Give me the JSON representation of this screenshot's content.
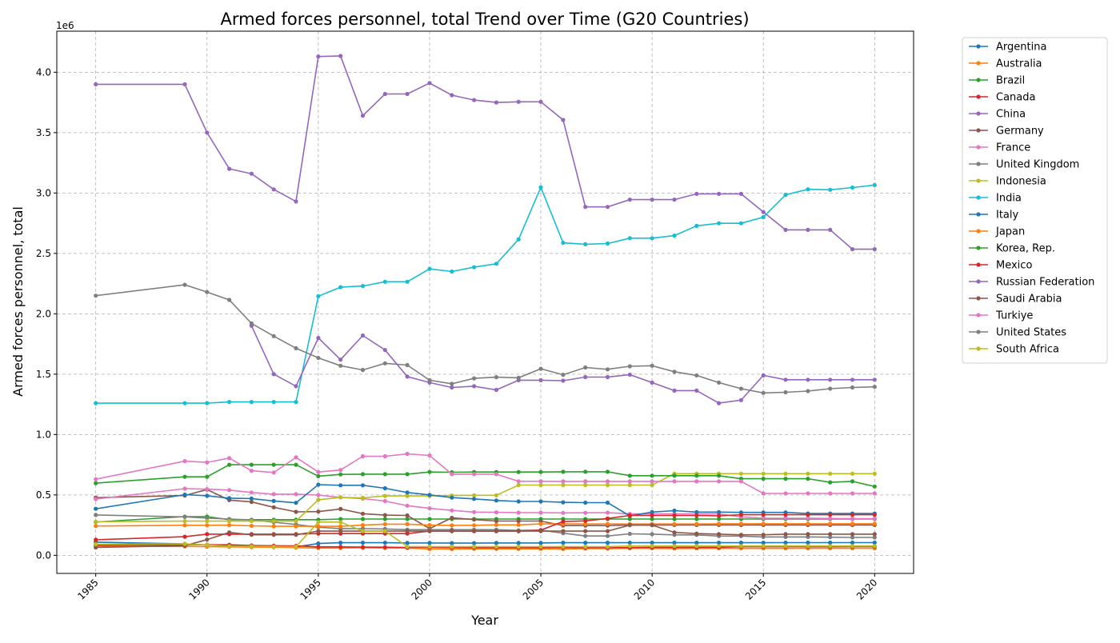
{
  "chart_data": {
    "type": "line",
    "title": "Armed forces personnel, total Trend over Time (G20 Countries)",
    "xlabel": "Year",
    "ylabel": "Armed forces personnel, total",
    "y_offset_label": "1e6",
    "y_scale": 1000000,
    "xlim": [
      1983.25,
      2021.75
    ],
    "ylim": [
      -150000,
      4340000
    ],
    "x_ticks": [
      1985,
      1990,
      1995,
      2000,
      2005,
      2010,
      2015,
      2020
    ],
    "y_ticks": [
      0,
      500000,
      1000000,
      1500000,
      2000000,
      2500000,
      3000000,
      3500000,
      4000000
    ],
    "y_tick_labels": [
      "0.0",
      "0.5",
      "1.0",
      "1.5",
      "2.0",
      "2.5",
      "3.0",
      "3.5",
      "4.0"
    ],
    "grid": true,
    "legend_position": "outside-right",
    "x": [
      1985,
      1989,
      1990,
      1991,
      1992,
      1993,
      1994,
      1995,
      1996,
      1997,
      1998,
      1999,
      2000,
      2001,
      2002,
      2003,
      2004,
      2005,
      2006,
      2007,
      2008,
      2009,
      2010,
      2011,
      2012,
      2013,
      2014,
      2015,
      2016,
      2017,
      2018,
      2019,
      2020
    ],
    "series": [
      {
        "name": "Argentina",
        "color": "#1f77b4",
        "values": [
          109000,
          95000,
          85000,
          82000,
          72000,
          70000,
          70000,
          98000,
          104000,
          104000,
          104000,
          102000,
          102000,
          101000,
          101000,
          102000,
          102000,
          102000,
          104000,
          104000,
          104000,
          104000,
          104000,
          104000,
          104000,
          104000,
          104000,
          104000,
          105000,
          105000,
          105000,
          105000,
          105000
        ]
      },
      {
        "name": "Australia",
        "color": "#ff7f0e",
        "values": [
          76000,
          73000,
          72000,
          70000,
          68000,
          67000,
          64000,
          60000,
          60000,
          62000,
          60000,
          60000,
          52000,
          51000,
          53000,
          53000,
          53000,
          53000,
          52000,
          55000,
          55000,
          57000,
          57000,
          56000,
          57000,
          57000,
          57000,
          57000,
          57000,
          58000,
          58000,
          58000,
          58000
        ]
      },
      {
        "name": "Brazil",
        "color": "#2ca02c",
        "values": [
          276000,
          320000,
          320000,
          295000,
          295000,
          295000,
          295000,
          295000,
          300000,
          300000,
          300000,
          300000,
          300000,
          300000,
          300000,
          300000,
          300000,
          300000,
          300000,
          300000,
          300000,
          300000,
          300000,
          300000,
          300000,
          300000,
          300000,
          300000,
          300000,
          300000,
          300000,
          300000,
          300000
        ]
      },
      {
        "name": "Canada",
        "color": "#d62728",
        "values": [
          83000,
          88000,
          87000,
          87000,
          82000,
          79000,
          78000,
          70000,
          70000,
          68000,
          67000,
          65000,
          65000,
          64000,
          64000,
          64000,
          64000,
          64000,
          64000,
          64000,
          64000,
          64000,
          66000,
          66000,
          66000,
          66000,
          71000,
          71000,
          71000,
          71000,
          71000,
          72000,
          72000
        ]
      },
      {
        "name": "China",
        "color": "#9467bd",
        "values": [
          3900000,
          3900000,
          3500000,
          3200000,
          3160000,
          3030000,
          2930000,
          4130000,
          4135000,
          3640000,
          3820000,
          3820000,
          3910000,
          3810000,
          3770000,
          3750000,
          3755000,
          3755000,
          3605000,
          2885000,
          2885000,
          2945000,
          2945000,
          2945000,
          2993000,
          2993000,
          2993000,
          2843000,
          2695000,
          2695000,
          2695000,
          2535000,
          2535000
        ]
      },
      {
        "name": "Germany",
        "color": "#8c564b",
        "values": [
          478000,
          495000,
          545000,
          457000,
          442000,
          398000,
          360000,
          362000,
          384000,
          345000,
          333000,
          330000,
          221000,
          310000,
          296000,
          284000,
          284000,
          284000,
          246000,
          246000,
          246000,
          251000,
          251000,
          251000,
          251000,
          251000,
          251000,
          251000,
          251000,
          251000,
          251000,
          251000,
          251000
        ]
      },
      {
        "name": "France",
        "color": "#e377c2",
        "values": [
          465000,
          552000,
          548000,
          540000,
          520000,
          506000,
          506000,
          499000,
          480000,
          470000,
          449000,
          411000,
          389000,
          372000,
          358000,
          356000,
          353000,
          353000,
          351000,
          352000,
          353000,
          343000,
          343000,
          343000,
          343000,
          343000,
          318000,
          307000,
          307000,
          307000,
          305000,
          303000,
          303000
        ]
      },
      {
        "name": "United Kingdom",
        "color": "#7f7f7f",
        "values": [
          334000,
          318000,
          308000,
          300000,
          293000,
          274000,
          255000,
          233000,
          220000,
          221000,
          218000,
          212000,
          212000,
          212000,
          212000,
          212000,
          206000,
          208000,
          183000,
          160000,
          160000,
          178000,
          175000,
          169000,
          169000,
          159000,
          159000,
          152000,
          152000,
          152000,
          150000,
          148000,
          148000
        ]
      },
      {
        "name": "Indonesia",
        "color": "#bcbd22",
        "values": [
          278000,
          283000,
          283000,
          283000,
          283000,
          283000,
          283000,
          460000,
          480000,
          476000,
          492000,
          492000,
          492000,
          495000,
          497000,
          497000,
          582000,
          582000,
          582000,
          582000,
          582000,
          582000,
          582000,
          676000,
          676000,
          676000,
          676000,
          676000,
          676000,
          676000,
          676000,
          676000,
          676000
        ]
      },
      {
        "name": "India",
        "color": "#17becf",
        "values": [
          1260000,
          1260000,
          1260000,
          1270000,
          1270000,
          1270000,
          1270000,
          2145000,
          2220000,
          2230000,
          2265000,
          2265000,
          2372000,
          2350000,
          2386000,
          2414000,
          2616000,
          3047000,
          2588000,
          2576000,
          2582000,
          2626000,
          2626000,
          2647000,
          2728000,
          2749000,
          2749000,
          2800000,
          2985000,
          3031000,
          3027000,
          3045000,
          3066000
        ]
      },
      {
        "name": "Italy",
        "color": "#1f77b4",
        "values": [
          385000,
          502000,
          493000,
          473000,
          470000,
          450000,
          435000,
          585000,
          580000,
          580000,
          555000,
          520000,
          500000,
          478000,
          467000,
          454000,
          446000,
          446000,
          439000,
          436000,
          436000,
          326000,
          358000,
          370000,
          358000,
          358000,
          355000,
          355000,
          355000,
          346000,
          346000,
          346000,
          346000
        ]
      },
      {
        "name": "Japan",
        "color": "#ff7f0e",
        "values": [
          243000,
          249000,
          249000,
          250000,
          244000,
          240000,
          240000,
          240000,
          240000,
          250000,
          258000,
          258000,
          250000,
          248000,
          249000,
          252000,
          252000,
          260000,
          260000,
          259000,
          259000,
          259000,
          259000,
          259000,
          259000,
          261000,
          261000,
          261000,
          261000,
          261000,
          261000,
          261000,
          261000
        ]
      },
      {
        "name": "Korea, Rep.",
        "color": "#2ca02c",
        "values": [
          598000,
          650000,
          650000,
          750000,
          750000,
          750000,
          750000,
          655000,
          670000,
          672000,
          672000,
          672000,
          690000,
          688000,
          690000,
          690000,
          690000,
          690000,
          692000,
          692000,
          692000,
          659000,
          659000,
          659000,
          659000,
          659000,
          634000,
          634000,
          634000,
          634000,
          604000,
          612000,
          570000
        ]
      },
      {
        "name": "Mexico",
        "color": "#d62728",
        "values": [
          129000,
          154000,
          175000,
          175000,
          175000,
          175000,
          175000,
          180000,
          180000,
          180000,
          180000,
          180000,
          200000,
          200000,
          200000,
          200000,
          200000,
          208000,
          280000,
          285000,
          305000,
          330000,
          330000,
          330000,
          330000,
          327000,
          336000,
          336000,
          336000,
          336000,
          336000,
          336000,
          336000
        ]
      },
      {
        "name": "Russian Federation",
        "color": "#9467bd",
        "values": [
          null,
          null,
          null,
          null,
          1900000,
          1500000,
          1400000,
          1800000,
          1620000,
          1820000,
          1700000,
          1480000,
          1430000,
          1390000,
          1400000,
          1370000,
          1450000,
          1450000,
          1446000,
          1476000,
          1476000,
          1496000,
          1430000,
          1364000,
          1364000,
          1260000,
          1285000,
          1490000,
          1454000,
          1454000,
          1454000,
          1454000,
          1454000
        ]
      },
      {
        "name": "Saudi Arabia",
        "color": "#8c564b",
        "values": [
          65000,
          80000,
          130000,
          190000,
          170000,
          170000,
          170000,
          200000,
          200000,
          200000,
          200000,
          200000,
          200000,
          200000,
          200000,
          200000,
          200000,
          200000,
          200000,
          200000,
          200000,
          250000,
          250000,
          190000,
          180000,
          175000,
          170000,
          170000,
          175000,
          175000,
          175000,
          175000,
          175000
        ]
      },
      {
        "name": "Turkiye",
        "color": "#e377c2",
        "values": [
          630000,
          780000,
          770000,
          805000,
          700000,
          686000,
          811000,
          690000,
          706000,
          820000,
          820000,
          840000,
          827000,
          672000,
          672000,
          672000,
          613000,
          613000,
          612000,
          612000,
          612000,
          612000,
          612000,
          612000,
          612000,
          612000,
          612000,
          512000,
          512000,
          512000,
          512000,
          512000,
          512000
        ]
      },
      {
        "name": "United States",
        "color": "#7f7f7f",
        "values": [
          2150000,
          2240000,
          2180000,
          2115000,
          1920000,
          1815000,
          1715000,
          1635000,
          1570000,
          1535000,
          1590000,
          1575000,
          1450000,
          1420000,
          1465000,
          1475000,
          1470000,
          1545000,
          1495000,
          1555000,
          1540000,
          1565000,
          1570000,
          1520000,
          1490000,
          1430000,
          1380000,
          1345000,
          1350000,
          1360000,
          1380000,
          1390000,
          1395000
        ]
      },
      {
        "name": "South Africa",
        "color": "#bcbd22",
        "values": [
          92000,
          95000,
          85000,
          75000,
          75000,
          72000,
          72000,
          275000,
          275000,
          200000,
          200000,
          72000,
          72000,
          72000,
          72000,
          72000,
          72000,
          72000,
          72000,
          72000,
          72000,
          77000,
          77000,
          77000,
          77000,
          77000,
          77000,
          77000,
          77000,
          77000,
          77000,
          77000,
          77000
        ]
      }
    ]
  }
}
